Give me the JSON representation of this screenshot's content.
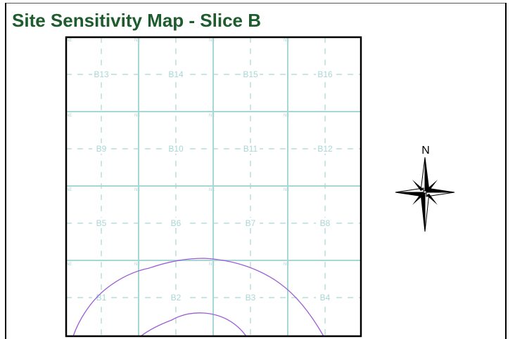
{
  "title": "Site Sensitivity Map - Slice B",
  "colors": {
    "title": "#1e5c2e",
    "grid": "#a7d7d5",
    "block_label": "#a7d7d5",
    "contour": "#9b5cd6",
    "frame": "#000000"
  },
  "block_labels": [
    "B13",
    "B14",
    "B15",
    "B16",
    "B9",
    "B10",
    "B11",
    "B12",
    "B5",
    "B6",
    "B7",
    "B8",
    "B1",
    "B2",
    "B3",
    "B4"
  ],
  "grid_corner_markers": {
    "top": "NE",
    "bottom": "NE",
    "top_full": "SE SW"
  },
  "north_arrow": {
    "label": "N",
    "icon": "compass-rose-icon"
  },
  "contours": [
    {
      "name": "outer-contour",
      "icon": "contour-line"
    },
    {
      "name": "inner-contour",
      "icon": "contour-line"
    }
  ]
}
